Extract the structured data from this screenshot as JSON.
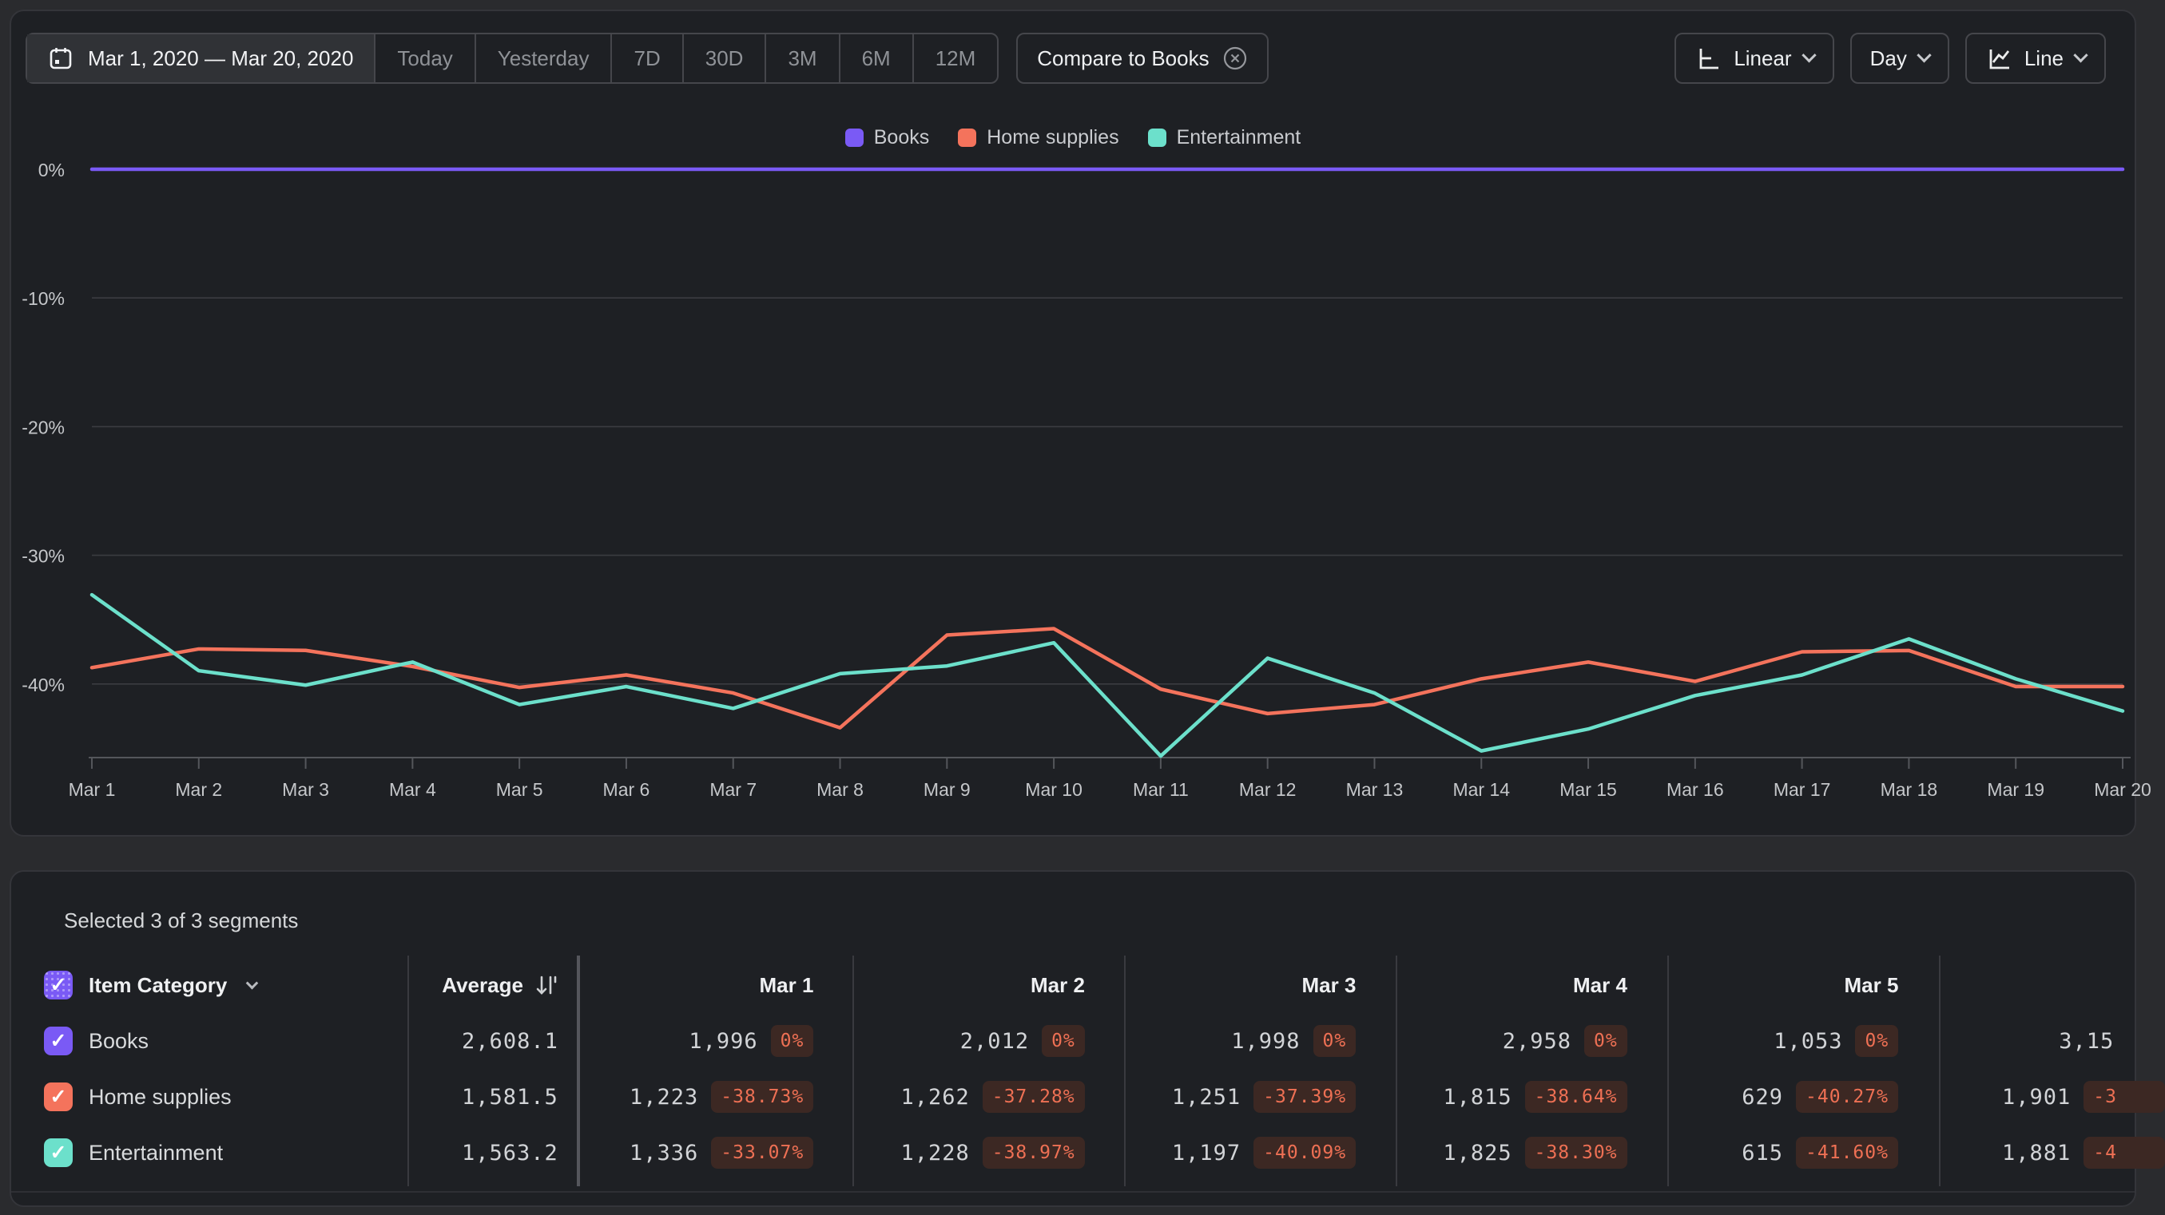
{
  "toolbar": {
    "date_range": "Mar 1, 2020 — Mar 20, 2020",
    "presets": [
      "Today",
      "Yesterday",
      "7D",
      "30D",
      "3M",
      "6M",
      "12M"
    ],
    "compare_chip": "Compare to Books",
    "scale_button": "Linear",
    "granularity_button": "Day",
    "chart_type_button": "Line"
  },
  "colors": {
    "books": "#7a5af5",
    "home_supplies": "#f4735c",
    "entertainment": "#6ce0cb",
    "badge_bg": "#3c2823",
    "badge_text": "#ee7054",
    "card_bg": "#1e2024",
    "page_bg": "#2a2b2e"
  },
  "chart_data": {
    "type": "line",
    "title": "",
    "x": [
      "Mar 1",
      "Mar 2",
      "Mar 3",
      "Mar 4",
      "Mar 5",
      "Mar 6",
      "Mar 7",
      "Mar 8",
      "Mar 9",
      "Mar 10",
      "Mar 11",
      "Mar 12",
      "Mar 13",
      "Mar 14",
      "Mar 15",
      "Mar 16",
      "Mar 17",
      "Mar 18",
      "Mar 19",
      "Mar 20"
    ],
    "y_ticks": [
      "0%",
      "-10%",
      "-20%",
      "-30%",
      "-40%"
    ],
    "y_tick_values": [
      0,
      -10,
      -20,
      -30,
      -40
    ],
    "ylim": [
      -46.5,
      0
    ],
    "grid": true,
    "legend_position": "top",
    "series": [
      {
        "name": "Books",
        "color": "#7a5af5",
        "values": [
          0,
          0,
          0,
          0,
          0,
          0,
          0,
          0,
          0,
          0,
          0,
          0,
          0,
          0,
          0,
          0,
          0,
          0,
          0,
          0
        ]
      },
      {
        "name": "Home supplies",
        "color": "#f4735c",
        "values": [
          -38.73,
          -37.28,
          -37.39,
          -38.64,
          -40.27,
          -39.3,
          -40.7,
          -43.4,
          -36.2,
          -35.7,
          -40.4,
          -42.3,
          -41.6,
          -39.6,
          -38.3,
          -39.8,
          -37.5,
          -37.4,
          -40.2,
          -40.2
        ]
      },
      {
        "name": "Entertainment",
        "color": "#6ce0cb",
        "values": [
          -33.07,
          -38.97,
          -40.09,
          -38.3,
          -41.6,
          -40.2,
          -41.9,
          -39.2,
          -38.6,
          -36.8,
          -45.6,
          -38.0,
          -40.7,
          -45.2,
          -43.5,
          -40.9,
          -39.3,
          -36.5,
          -39.6,
          -42.1
        ]
      }
    ]
  },
  "table": {
    "title": "Selected 3 of 3 segments",
    "category_header": "Item Category",
    "average_header": "Average",
    "date_headers": [
      "Mar 1",
      "Mar 2",
      "Mar 3",
      "Mar 4",
      "Mar 5"
    ],
    "rows": [
      {
        "label": "Books",
        "average": "2,608.1",
        "cells": [
          {
            "value": "1,996",
            "badge": "0%"
          },
          {
            "value": "2,012",
            "badge": "0%"
          },
          {
            "value": "1,998",
            "badge": "0%"
          },
          {
            "value": "2,958",
            "badge": "0%"
          },
          {
            "value": "1,053",
            "badge": "0%"
          },
          {
            "value": "3,15"
          }
        ]
      },
      {
        "label": "Home supplies",
        "average": "1,581.5",
        "cells": [
          {
            "value": "1,223",
            "badge": "-38.73%"
          },
          {
            "value": "1,262",
            "badge": "-37.28%"
          },
          {
            "value": "1,251",
            "badge": "-37.39%"
          },
          {
            "value": "1,815",
            "badge": "-38.64%"
          },
          {
            "value": "629",
            "badge": "-40.27%"
          },
          {
            "value": "1,901",
            "badge": "-3"
          }
        ]
      },
      {
        "label": "Entertainment",
        "average": "1,563.2",
        "cells": [
          {
            "value": "1,336",
            "badge": "-33.07%"
          },
          {
            "value": "1,228",
            "badge": "-38.97%"
          },
          {
            "value": "1,197",
            "badge": "-40.09%"
          },
          {
            "value": "1,825",
            "badge": "-38.30%"
          },
          {
            "value": "615",
            "badge": "-41.60%"
          },
          {
            "value": "1,881",
            "badge": "-4"
          }
        ]
      }
    ]
  }
}
